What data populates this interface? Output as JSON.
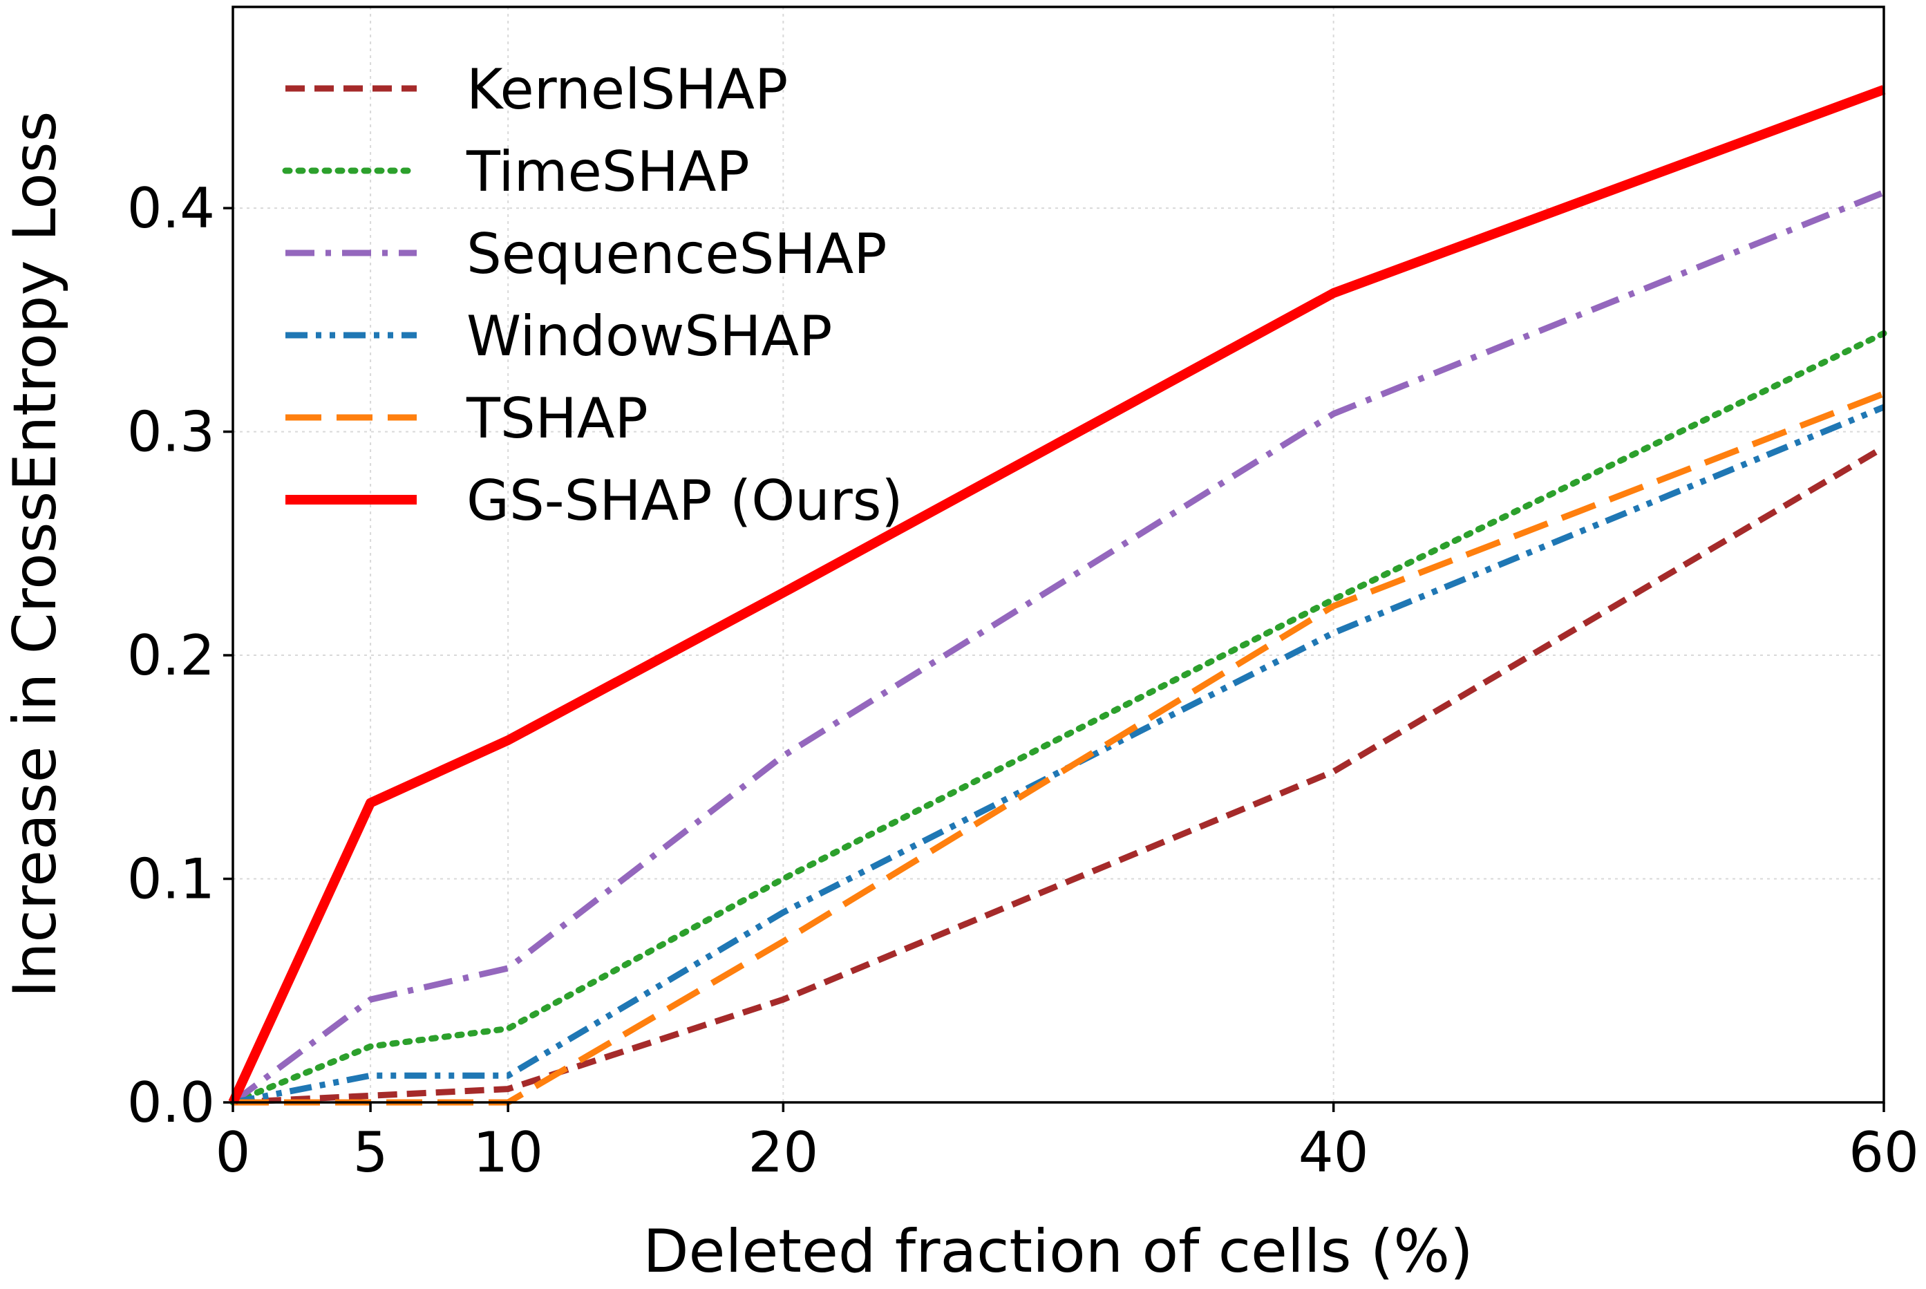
{
  "chart_data": {
    "type": "line",
    "title": "",
    "xlabel": "Deleted fraction of cells (%)",
    "ylabel": "Increase in CrossEntropy Loss",
    "x": [
      0,
      5,
      10,
      20,
      40,
      60
    ],
    "xlim": [
      0,
      60
    ],
    "ylim": [
      0,
      0.49
    ],
    "xticks": [
      0,
      5,
      10,
      20,
      40,
      60
    ],
    "xtick_labels": [
      "0",
      "5",
      "10",
      "20",
      "40",
      "60"
    ],
    "yticks": [
      0.0,
      0.1,
      0.2,
      0.3,
      0.4
    ],
    "ytick_labels": [
      "0.0",
      "0.1",
      "0.2",
      "0.3",
      "0.4"
    ],
    "grid": true,
    "legend_position": "top-left",
    "series": [
      {
        "name": "KernelSHAP",
        "color": "#a52a2a",
        "style": "dashed",
        "values": [
          0.0,
          0.003,
          0.006,
          0.046,
          0.148,
          0.293
        ]
      },
      {
        "name": "TimeSHAP",
        "color": "#2ca02c",
        "style": "dotted",
        "values": [
          0.0,
          0.025,
          0.033,
          0.1,
          0.225,
          0.344
        ]
      },
      {
        "name": "SequenceSHAP",
        "color": "#9467bd",
        "style": "dashdot",
        "values": [
          0.0,
          0.046,
          0.06,
          0.155,
          0.308,
          0.407
        ]
      },
      {
        "name": "WindowSHAP",
        "color": "#1f77b4",
        "style": "dashdotdot",
        "values": [
          0.0,
          0.012,
          0.012,
          0.085,
          0.21,
          0.311
        ]
      },
      {
        "name": "TSHAP",
        "color": "#ff7f0e",
        "style": "longdash",
        "values": [
          0.0,
          0.0,
          0.0,
          0.072,
          0.222,
          0.317
        ]
      },
      {
        "name": "GS-SHAP (Ours)",
        "color": "#ff0000",
        "style": "solid",
        "values": [
          0.0,
          0.134,
          0.162,
          0.228,
          0.362,
          0.453
        ]
      }
    ]
  }
}
